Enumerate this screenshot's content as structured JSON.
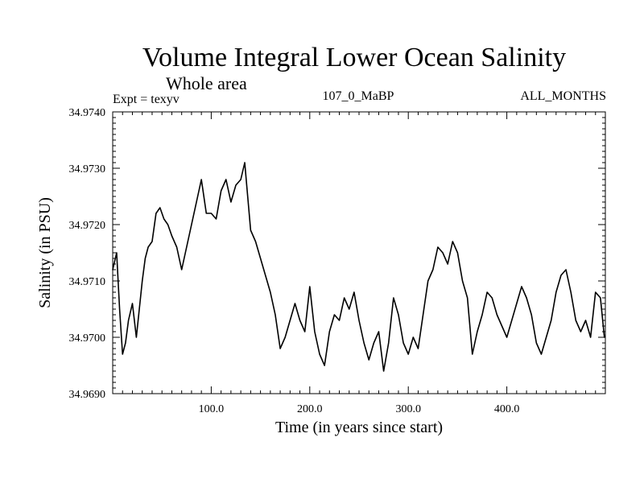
{
  "chart_data": {
    "type": "line",
    "title": "Volume Integral Lower Ocean Salinity",
    "subtitle": "Whole area",
    "experiment_label": "Expt = texyv",
    "center_label": "107_0_MaBP",
    "right_label": "ALL_MONTHS",
    "xlabel": "Time (in years since start)",
    "ylabel": "Salinity (in PSU)",
    "xlim": [
      0,
      500
    ],
    "ylim": [
      34.969,
      34.974
    ],
    "x_ticks": [
      100,
      200,
      300,
      400
    ],
    "x_tick_labels": [
      "100.0",
      "200.0",
      "300.0",
      "400.0"
    ],
    "y_ticks": [
      34.969,
      34.97,
      34.971,
      34.972,
      34.973,
      34.974
    ],
    "y_tick_labels": [
      "34.9690",
      "34.9700",
      "34.9710",
      "34.9720",
      "34.9730",
      "34.9740"
    ],
    "grid": false,
    "legend": "none",
    "line_color": "#000000",
    "series": [
      {
        "x": [
          0,
          4,
          7,
          10,
          13,
          16,
          20,
          24,
          27,
          30,
          33,
          36,
          40,
          44,
          48,
          52,
          56,
          60,
          65,
          70,
          75,
          80,
          85,
          90,
          95,
          100,
          105,
          110,
          115,
          120,
          125,
          130,
          134,
          137,
          140,
          145,
          150,
          155,
          160,
          165,
          170,
          175,
          180,
          185,
          190,
          195,
          200,
          205,
          210,
          215,
          220,
          225,
          230,
          235,
          240,
          245,
          250,
          255,
          260,
          265,
          270,
          275,
          280,
          285,
          290,
          295,
          300,
          305,
          310,
          315,
          320,
          325,
          330,
          335,
          340,
          345,
          350,
          355,
          360,
          365,
          370,
          375,
          380,
          385,
          390,
          395,
          400,
          405,
          410,
          415,
          420,
          425,
          430,
          435,
          440,
          445,
          450,
          455,
          460,
          465,
          470,
          475,
          480,
          485,
          490,
          495,
          499
        ],
        "y": [
          34.9712,
          34.9715,
          34.9705,
          34.9697,
          34.9699,
          34.9703,
          34.9706,
          34.97,
          34.9705,
          34.971,
          34.9714,
          34.9716,
          34.9717,
          34.9722,
          34.9723,
          34.9721,
          34.972,
          34.9718,
          34.9716,
          34.9712,
          34.9716,
          34.972,
          34.9724,
          34.9728,
          34.9722,
          34.9722,
          34.9721,
          34.9726,
          34.9728,
          34.9724,
          34.9727,
          34.9728,
          34.9731,
          34.9725,
          34.9719,
          34.9717,
          34.9714,
          34.9711,
          34.9708,
          34.9704,
          34.9698,
          34.97,
          34.9703,
          34.9706,
          34.9703,
          34.9701,
          34.9709,
          34.9701,
          34.9697,
          34.9695,
          34.9701,
          34.9704,
          34.9703,
          34.9707,
          34.9705,
          34.9708,
          34.9703,
          34.9699,
          34.9696,
          34.9699,
          34.9701,
          34.9694,
          34.9699,
          34.9707,
          34.9704,
          34.9699,
          34.9697,
          34.97,
          34.9698,
          34.9704,
          34.971,
          34.9712,
          34.9716,
          34.9715,
          34.9713,
          34.9717,
          34.9715,
          34.971,
          34.9707,
          34.9697,
          34.9701,
          34.9704,
          34.9708,
          34.9707,
          34.9704,
          34.9702,
          34.97,
          34.9703,
          34.9706,
          34.9709,
          34.9707,
          34.9704,
          34.9699,
          34.9697,
          34.97,
          34.9703,
          34.9708,
          34.9711,
          34.9712,
          34.9708,
          34.9703,
          34.9701,
          34.9703,
          34.97,
          34.9708,
          34.9707,
          34.97
        ]
      }
    ]
  }
}
